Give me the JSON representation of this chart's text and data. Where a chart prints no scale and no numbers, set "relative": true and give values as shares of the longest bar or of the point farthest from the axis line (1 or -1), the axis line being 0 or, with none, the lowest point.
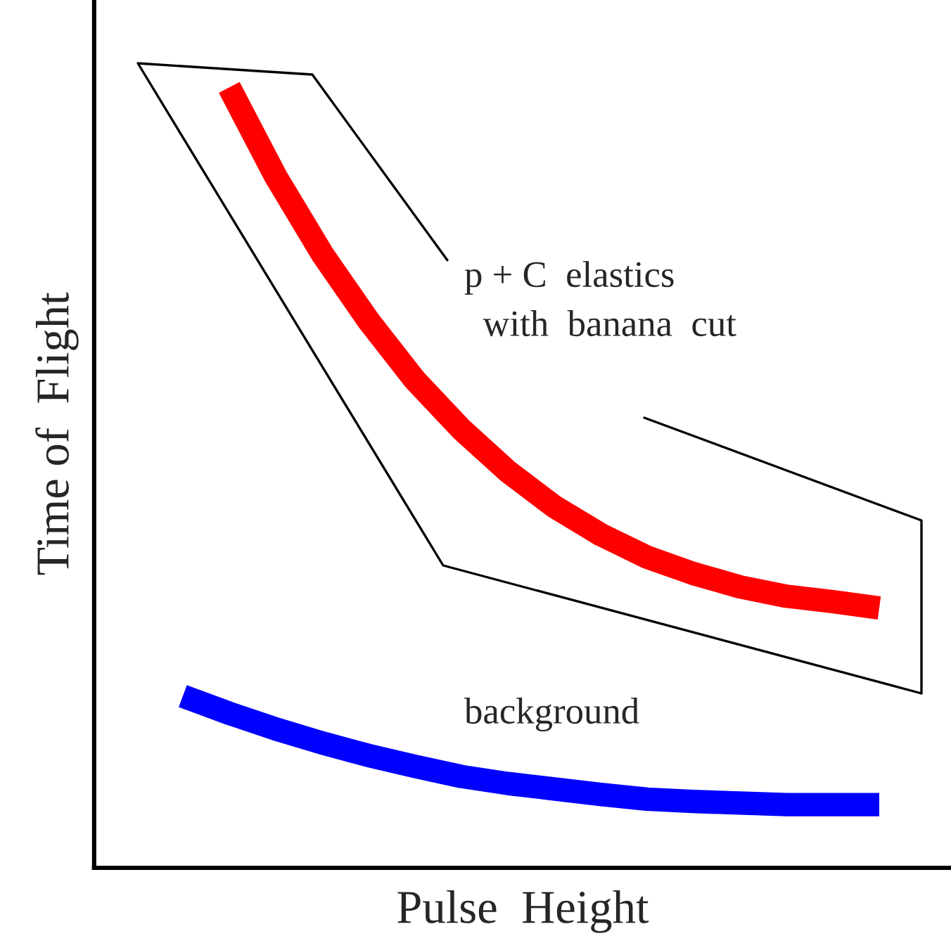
{
  "chart_data": {
    "type": "line",
    "relative": true,
    "xlabel": "Pulse  Height",
    "ylabel": "Time of  Flight",
    "categories": [
      null,
      null,
      null,
      null,
      null,
      null,
      null,
      null,
      null,
      null,
      null,
      null,
      null,
      null,
      null,
      null
    ],
    "series": [
      {
        "color": "#ff0000",
        "values": [
          null,
          1.0,
          0.886,
          0.787,
          0.701,
          0.625,
          0.562,
          0.508,
          0.463,
          0.427,
          0.398,
          0.377,
          0.36,
          0.348,
          0.341,
          0.333
        ]
      },
      {
        "color": "#0000ff",
        "values": [
          0.22,
          0.198,
          0.178,
          0.16,
          0.144,
          0.13,
          0.117,
          0.108,
          0.101,
          0.094,
          0.088,
          0.085,
          0.083,
          0.081,
          0.081,
          0.081
        ]
      }
    ],
    "annotations": [
      "p + C  elastics\n  with  banana  cut",
      "background"
    ],
    "grid": false,
    "legend": false,
    "marker": "none",
    "line_style": "solid"
  }
}
